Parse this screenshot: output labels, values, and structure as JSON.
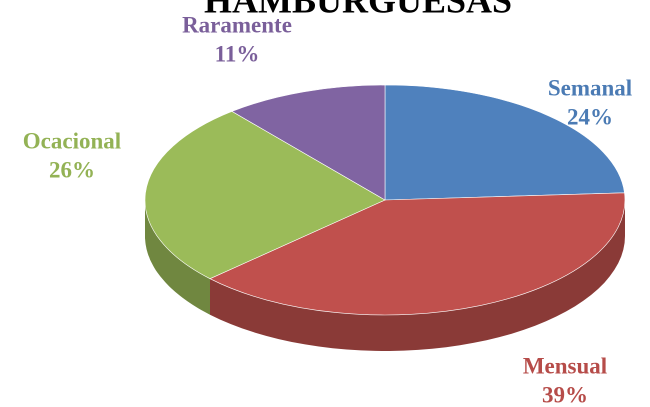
{
  "chart_data": {
    "type": "pie",
    "title": "HAMBURGUESAS",
    "categories": [
      "Semanal",
      "Mensual",
      "Ocacional",
      "Raramente"
    ],
    "values": [
      24,
      39,
      26,
      11
    ],
    "value_labels": [
      "24%",
      "39%",
      "26%",
      "11%"
    ],
    "colors": [
      "#4f81bd",
      "#c0504d",
      "#9bbb59",
      "#8064a2"
    ]
  }
}
